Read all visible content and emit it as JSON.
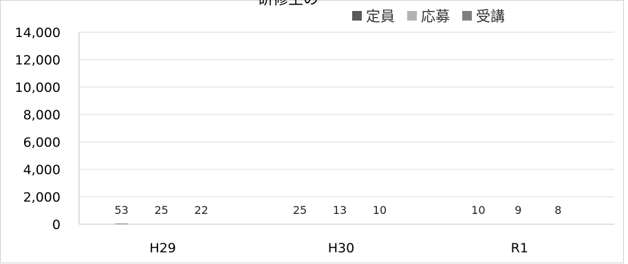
{
  "chart_data": {
    "type": "bar",
    "title": "研修生の",
    "categories": [
      "H29",
      "H30",
      "R1"
    ],
    "series": [
      {
        "name": "定員",
        "values": [
          53,
          25,
          10
        ],
        "color": "#5a5a5a"
      },
      {
        "name": "応募",
        "values": [
          25,
          13,
          9
        ],
        "color": "#b3b3b3"
      },
      {
        "name": "受講",
        "values": [
          22,
          10,
          8
        ],
        "color": "#7f7f7f"
      }
    ],
    "yticks": [
      "0",
      "2,000",
      "4,000",
      "6,000",
      "8,000",
      "10,000",
      "12,000",
      "14,000"
    ],
    "ylim": [
      0,
      14000
    ],
    "legend_position": "top-right",
    "grid": true
  }
}
